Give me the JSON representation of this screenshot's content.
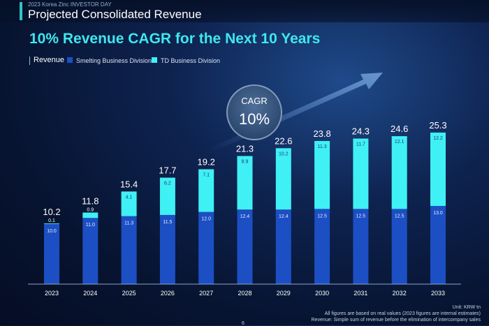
{
  "header": {
    "event": "2023 Korea Zinc INVESTOR DAY",
    "title": "Projected Consolidated Revenue"
  },
  "headline": "10% Revenue CAGR for the Next 10 Years",
  "legend": {
    "title": "Revenue",
    "items": [
      {
        "label": "Smelting Business Division",
        "color": "#1c4fc4"
      },
      {
        "label": "TD Business Division",
        "color": "#3ff0f4"
      }
    ]
  },
  "cagr": {
    "label": "CAGR",
    "value": "10%"
  },
  "chart_data": {
    "type": "bar",
    "stacked": true,
    "categories": [
      "2023",
      "2024",
      "2025",
      "2026",
      "2027",
      "2028",
      "2029",
      "2030",
      "2031",
      "2032",
      "2033"
    ],
    "series": [
      {
        "name": "Smelting Business Division",
        "color": "#1c4fc4",
        "values": [
          10.0,
          11.0,
          11.3,
          11.5,
          12.0,
          12.4,
          12.4,
          12.5,
          12.5,
          12.5,
          13.0
        ],
        "labels": [
          "10.0",
          "11.0",
          "11.3",
          "11.5",
          "12.0",
          "12.4",
          "12.4",
          "12.5",
          "12.5",
          "12.5",
          "13.0"
        ]
      },
      {
        "name": "TD Business Division",
        "color": "#3ff0f4",
        "values": [
          0.1,
          0.9,
          4.1,
          6.2,
          7.1,
          8.9,
          10.2,
          11.3,
          11.7,
          12.1,
          12.2
        ],
        "labels": [
          "0.1",
          "0.9",
          "4.1",
          "6.2",
          "7.1",
          "8.9",
          "10.2",
          "11.3",
          "11.7",
          "12.1",
          "12.2"
        ]
      }
    ],
    "totals": [
      "10.2",
      "11.8",
      "15.4",
      "17.7",
      "19.2",
      "21.3",
      "22.6",
      "23.8",
      "24.3",
      "24.6",
      "25.3"
    ],
    "ylim": [
      0,
      26
    ],
    "unit": "KRW tn",
    "grid": false
  },
  "footer": {
    "unit": "Unit: KRW tn",
    "note1": "All figures are based on real values (2023 figures are internal estimates)",
    "note2": "Revenue: Simple sum of revenue before the elimination of intercompany sales",
    "page": "6"
  }
}
